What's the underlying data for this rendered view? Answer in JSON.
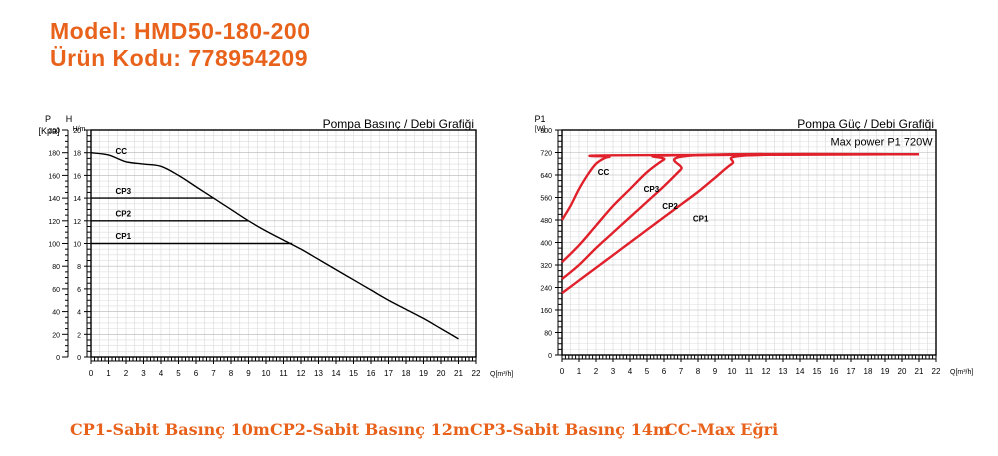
{
  "header": {
    "model": "Model: HMD50-180-200",
    "product_code": "Ürün Kodu: 778954209"
  },
  "footer": {
    "legend": [
      "CP1-Sabit Basınç 10m",
      "CP2-Sabit Basınç 12m",
      "CP3-Sabit Basınç 14m",
      "CC-Max Eğri"
    ]
  },
  "colors": {
    "accent": "#e8621c",
    "power_curve": "#e0202a",
    "head_curve": "#000000"
  },
  "chart_data": [
    {
      "type": "line",
      "title": "Pompa Basınç / Debi Grafiği",
      "xlabel": "Q[m³/h]",
      "ylabel": "H",
      "ylabel_unit": "H/m",
      "secondary_ylabel": "P",
      "secondary_ylabel_unit": "[Kpa]",
      "xlim": [
        0,
        22
      ],
      "ylim": [
        0,
        20
      ],
      "secondary_ylim": [
        0,
        200
      ],
      "x_ticks": [
        0,
        1,
        2,
        3,
        4,
        5,
        6,
        7,
        8,
        9,
        10,
        11,
        12,
        13,
        14,
        15,
        16,
        17,
        18,
        19,
        20,
        21,
        22
      ],
      "y_ticks": [
        0,
        2,
        4,
        6,
        8,
        10,
        12,
        14,
        16,
        18,
        20
      ],
      "secondary_y_ticks": [
        0,
        20,
        40,
        60,
        80,
        100,
        120,
        140,
        160,
        180,
        200
      ],
      "grid": true,
      "series": [
        {
          "name": "CC",
          "x": [
            0,
            1,
            2,
            3,
            4,
            5,
            6,
            7,
            8,
            9,
            10,
            11,
            12,
            13,
            14,
            15,
            16,
            17,
            18,
            19,
            20,
            21
          ],
          "y": [
            18,
            17.8,
            17.2,
            17,
            16.8,
            16,
            15,
            14,
            13,
            12,
            11.1,
            10.3,
            9.5,
            8.6,
            7.7,
            6.8,
            5.9,
            5,
            4.2,
            3.4,
            2.5,
            1.6
          ]
        },
        {
          "name": "CP3",
          "x": [
            0,
            7
          ],
          "y": [
            14,
            14
          ]
        },
        {
          "name": "CP2",
          "x": [
            0,
            9
          ],
          "y": [
            12,
            12
          ]
        },
        {
          "name": "CP1",
          "x": [
            0,
            11.5
          ],
          "y": [
            10,
            10
          ]
        }
      ]
    },
    {
      "type": "line",
      "title": "Pompa Güç / Debi Grafiği",
      "xlabel": "Q[m³/h]",
      "ylabel": "P1",
      "ylabel_unit": "[W]",
      "xlim": [
        0,
        22
      ],
      "ylim": [
        0,
        800
      ],
      "x_ticks": [
        0,
        1,
        2,
        3,
        4,
        5,
        6,
        7,
        8,
        9,
        10,
        11,
        12,
        13,
        14,
        15,
        16,
        17,
        18,
        19,
        20,
        21,
        22
      ],
      "y_ticks": [
        0,
        80,
        160,
        240,
        320,
        400,
        480,
        560,
        640,
        720,
        800
      ],
      "grid": true,
      "annotation": "Max power P1  720W",
      "series": [
        {
          "name": "CC",
          "x": [
            0,
            0.5,
            1,
            1.5,
            2,
            2.5,
            2.8,
            3,
            21
          ],
          "y": [
            480,
            530,
            590,
            640,
            680,
            700,
            705,
            710,
            714
          ]
        },
        {
          "name": "CP3",
          "x": [
            0,
            1,
            2,
            3,
            4,
            5,
            6,
            6.5,
            21
          ],
          "y": [
            330,
            390,
            460,
            530,
            590,
            650,
            695,
            710,
            714
          ]
        },
        {
          "name": "CP2",
          "x": [
            0,
            1,
            2,
            3,
            4,
            5,
            6,
            7,
            7.8,
            21
          ],
          "y": [
            270,
            320,
            380,
            435,
            490,
            545,
            600,
            660,
            710,
            714
          ]
        },
        {
          "name": "CP1",
          "x": [
            0,
            1,
            2,
            3,
            4,
            5,
            6,
            7,
            8,
            9,
            10,
            11,
            21
          ],
          "y": [
            220,
            265,
            310,
            355,
            400,
            445,
            490,
            535,
            580,
            630,
            680,
            710,
            714
          ]
        }
      ]
    }
  ]
}
